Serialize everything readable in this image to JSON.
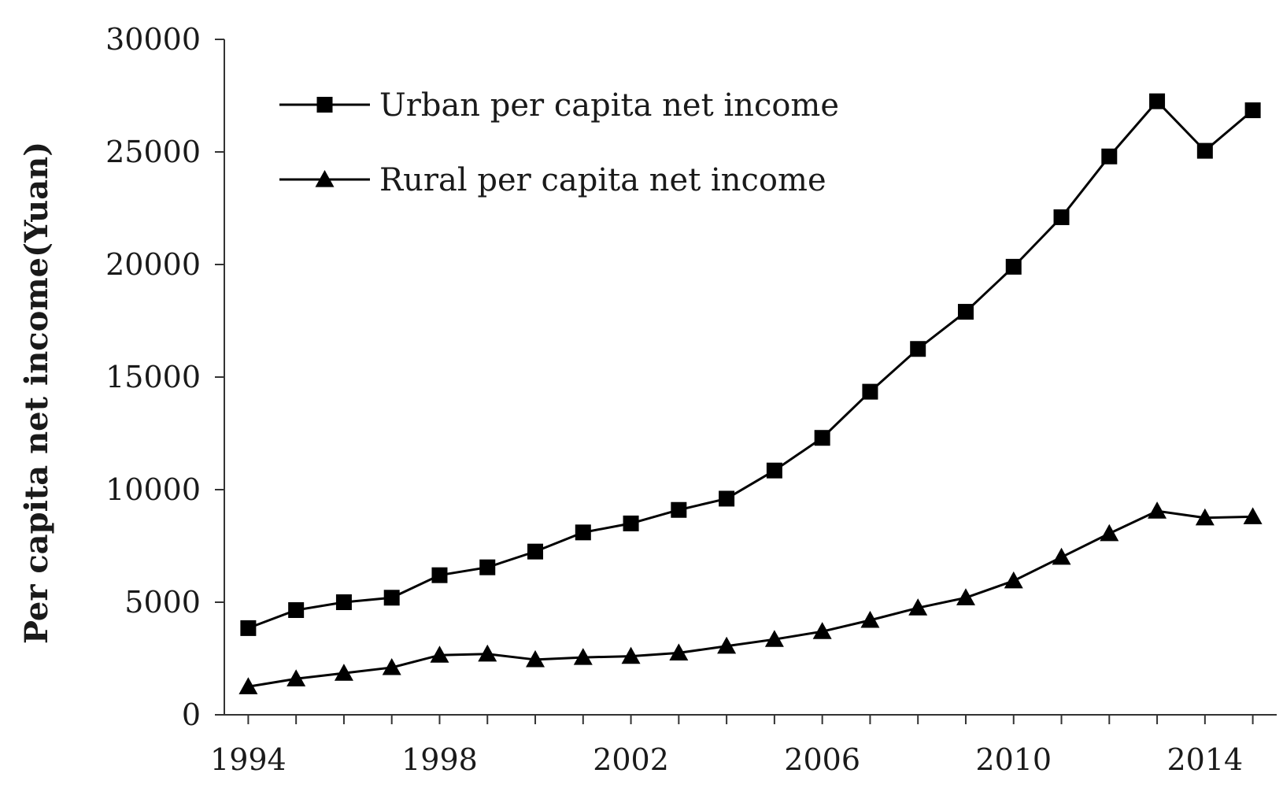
{
  "chart_data": {
    "type": "line",
    "title": "",
    "xlabel": "",
    "ylabel": "Per capita net income(Yuan)",
    "x": [
      1994,
      1995,
      1996,
      1997,
      1998,
      1999,
      2000,
      2001,
      2002,
      2003,
      2004,
      2005,
      2006,
      2007,
      2008,
      2009,
      2010,
      2011,
      2012,
      2013,
      2014,
      2015
    ],
    "xlim": [
      1993.5,
      2015.5
    ],
    "ylim": [
      0,
      30000
    ],
    "x_ticks": [
      1994,
      1998,
      2002,
      2006,
      2010,
      2014
    ],
    "x_tick_labels": [
      "1994",
      "1998",
      "2002",
      "2006",
      "2010",
      "2014"
    ],
    "y_ticks": [
      0,
      5000,
      10000,
      15000,
      20000,
      25000,
      30000
    ],
    "y_tick_labels": [
      "0",
      "5000",
      "10000",
      "15000",
      "20000",
      "25000",
      "30000"
    ],
    "grid": false,
    "legend_position": "top-left",
    "series": [
      {
        "name": "Urban per capita net income",
        "marker": "square",
        "values": [
          3850,
          4650,
          5000,
          5200,
          6200,
          6550,
          7250,
          8100,
          8500,
          9100,
          9600,
          10850,
          12300,
          14350,
          16250,
          17900,
          19900,
          22100,
          24800,
          27250,
          25050,
          26850
        ]
      },
      {
        "name": "Rural per capita net income",
        "marker": "triangle",
        "values": [
          1250,
          1600,
          1850,
          2100,
          2650,
          2700,
          2450,
          2550,
          2600,
          2750,
          3050,
          3350,
          3700,
          4200,
          4750,
          5200,
          5950,
          7000,
          8050,
          9050,
          8750,
          8800
        ]
      }
    ],
    "colors": {
      "line": "#000000",
      "axis": "#333333",
      "text": "#1a1a1a"
    }
  }
}
